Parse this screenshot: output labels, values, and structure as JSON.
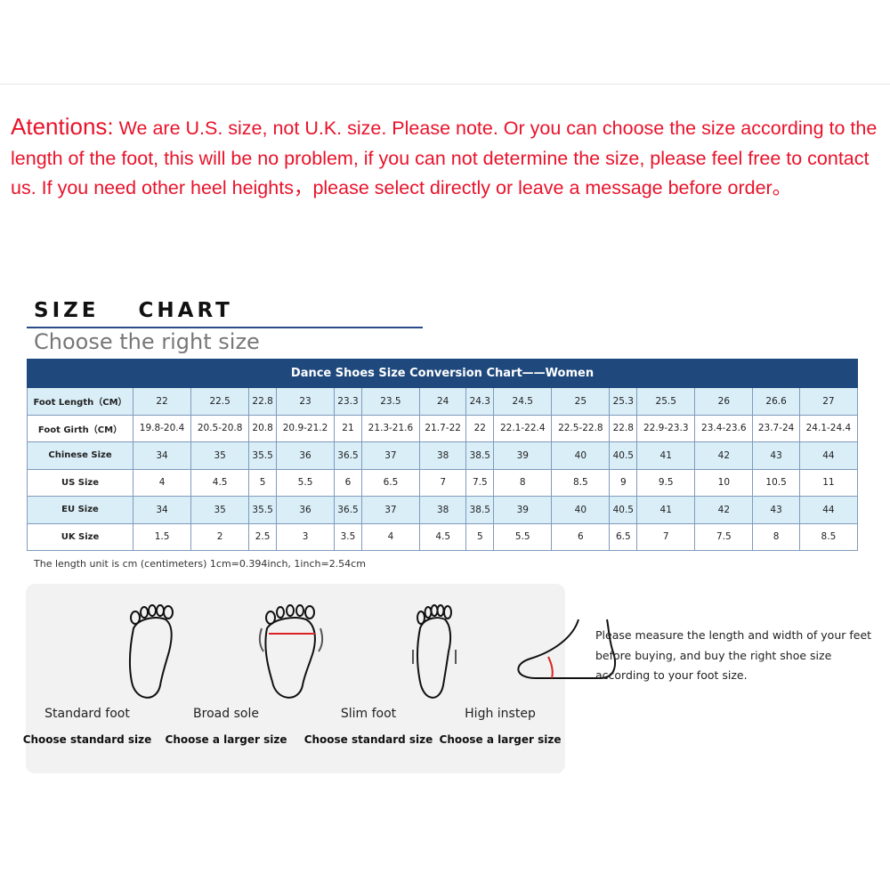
{
  "notice": {
    "lead": "Atentions:",
    "text": " We are U.S. size, not U.K. size. Please note. Or you can choose the size according to the length of the foot, this will be no problem, if you can not  determine the size, please feel free to contact us. If you need other heel heights，please select  directly or leave a message before order。",
    "color": "#e8132b"
  },
  "size_chart": {
    "title": "SIZE  CHART",
    "subtitle": "Choose the right size",
    "table_title": "Dance Shoes Size Conversion Chart——Women",
    "header_color": "#1f497d",
    "rows": [
      {
        "label": "Foot Length（CM）",
        "values": [
          "22",
          "22.5",
          "22.8",
          "23",
          "23.3",
          "23.5",
          "24",
          "24.3",
          "24.5",
          "25",
          "25.3",
          "25.5",
          "26",
          "26.6",
          "27"
        ]
      },
      {
        "label": "Foot Girth（CM）",
        "values": [
          "19.8-20.4",
          "20.5-20.8",
          "20.8",
          "20.9-21.2",
          "21",
          "21.3-21.6",
          "21.7-22",
          "22",
          "22.1-22.4",
          "22.5-22.8",
          "22.8",
          "22.9-23.3",
          "23.4-23.6",
          "23.7-24",
          "24.1-24.4"
        ]
      },
      {
        "label": "Chinese Size",
        "values": [
          "34",
          "35",
          "35.5",
          "36",
          "36.5",
          "37",
          "38",
          "38.5",
          "39",
          "40",
          "40.5",
          "41",
          "42",
          "43",
          "44"
        ]
      },
      {
        "label": "US Size",
        "values": [
          "4",
          "4.5",
          "5",
          "5.5",
          "6",
          "6.5",
          "7",
          "7.5",
          "8",
          "8.5",
          "9",
          "9.5",
          "10",
          "10.5",
          "11"
        ]
      },
      {
        "label": "EU Size",
        "values": [
          "34",
          "35",
          "35.5",
          "36",
          "36.5",
          "37",
          "38",
          "38.5",
          "39",
          "40",
          "40.5",
          "41",
          "42",
          "43",
          "44"
        ]
      },
      {
        "label": "UK Size",
        "values": [
          "1.5",
          "2",
          "2.5",
          "3",
          "3.5",
          "4",
          "4.5",
          "5",
          "5.5",
          "6",
          "6.5",
          "7",
          "7.5",
          "8",
          "8.5"
        ]
      }
    ],
    "unit_note": "The length unit is cm (centimeters) 1cm=0.394inch, 1inch=2.54cm"
  },
  "foot_types": [
    {
      "name": "Standard foot",
      "advice": "Choose standard size",
      "icon": "standard-foot-icon"
    },
    {
      "name": "Broad sole",
      "advice": "Choose a larger size",
      "icon": "broad-foot-icon"
    },
    {
      "name": "Slim foot",
      "advice": "Choose standard size",
      "icon": "slim-foot-icon"
    },
    {
      "name": "High instep",
      "advice": "Choose a larger size",
      "icon": "high-instep-icon"
    }
  ],
  "measure_advice": "Please measure the length and width of your feet before buying, and buy the right shoe size according to your foot size."
}
